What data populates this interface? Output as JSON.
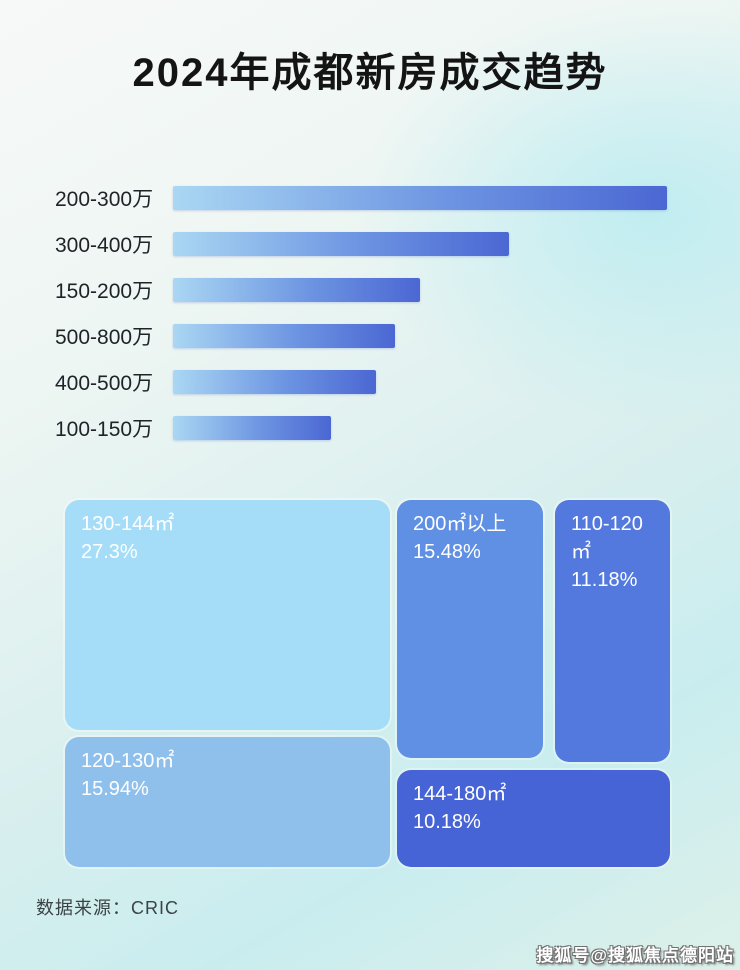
{
  "title": "2024年成都新房成交趋势",
  "source": "数据来源：CRIC",
  "watermark": "搜狐号@搜狐焦点德阳站",
  "colors": {
    "bar_gradient_start": "#aad7f3",
    "bar_gradient_end": "#4b67d3",
    "title_text": "#141414",
    "treemap_text": "#ffffff",
    "background_cyan": "#c9edef",
    "background_white": "#f7f9f8"
  },
  "chart_data": [
    {
      "type": "bar",
      "orientation": "horizontal",
      "title": "成交总价段分布（相对成交量）",
      "categories": [
        "200-300万",
        "300-400万",
        "150-200万",
        "500-800万",
        "400-500万",
        "100-150万"
      ],
      "values": [
        100,
        68,
        50,
        45,
        41,
        32
      ],
      "value_unit": "percent_of_longest_bar_estimated",
      "xlabel": "",
      "ylabel": "",
      "grid": false,
      "legend": "none",
      "data_labels_shown": false
    },
    {
      "type": "treemap",
      "title": "成交面积段占比",
      "items": [
        {
          "label": "130-144㎡",
          "value": 27.3,
          "display": "27.3%",
          "color": "#a5ddf8"
        },
        {
          "label": "120-130㎡",
          "value": 15.94,
          "display": "15.94%",
          "color": "#8fc0ec"
        },
        {
          "label": "200㎡以上",
          "value": 15.48,
          "display": "15.48%",
          "color": "#6090e3"
        },
        {
          "label": "110-120㎡",
          "value": 11.18,
          "display": "11.18%",
          "color": "#5379de"
        },
        {
          "label": "144-180㎡",
          "value": 10.18,
          "display": "10.18%",
          "color": "#4764d6"
        }
      ]
    }
  ]
}
